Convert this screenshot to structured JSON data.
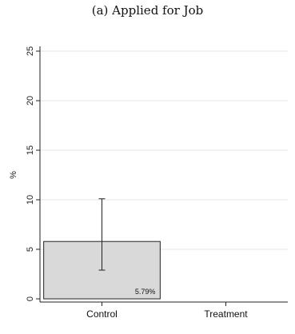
{
  "chart_data": {
    "type": "bar",
    "title": "(a) Applied for Job",
    "xlabel": "",
    "ylabel": "%",
    "ylim": [
      0,
      25
    ],
    "yticks": [
      0,
      5,
      10,
      15,
      20,
      25
    ],
    "categories": [
      "Control",
      "Treatment"
    ],
    "values": [
      5.79,
      null
    ],
    "error_bars": [
      [
        2.9,
        10.1
      ],
      null
    ],
    "data_labels": [
      "5.79%",
      ""
    ],
    "grid": true,
    "colors": {
      "bar_fill": "#d9d9d9",
      "bar_stroke": "#222222",
      "grid": "#e6e6e6"
    }
  }
}
